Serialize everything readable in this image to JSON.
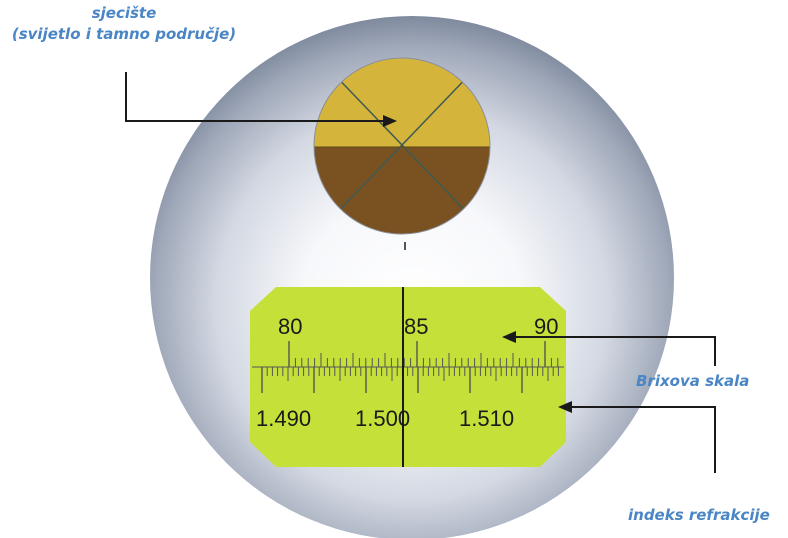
{
  "labels": {
    "intersection_line1": "sjecište",
    "intersection_line2": "(svijetlo i tamno područje)",
    "brix_scale": "Brixova skala",
    "refractive_index": "indeks refrakcije"
  },
  "scale": {
    "brix_ticks": [
      "80",
      "85",
      "90"
    ],
    "refraction_ticks": [
      "1.490",
      "1.500",
      "1.510"
    ]
  },
  "colors": {
    "label_text": "#4a86c5",
    "field_light": "#d4b43a",
    "field_dark": "#7a5222",
    "scale_background": "#c6e03a",
    "arrow": "#1a1a1a"
  }
}
